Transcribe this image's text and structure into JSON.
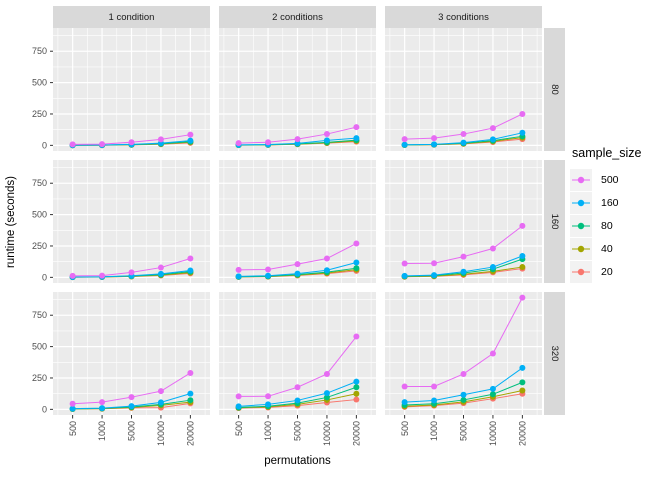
{
  "figure": {
    "y_axis_title": "runtime (seconds)",
    "x_axis_title": "permutations",
    "panel_background": "#EBEBEB",
    "strip_background": "#D9D9D9",
    "grid_color": "#FFFFFF",
    "tick_text_color": "#4D4D4D",
    "strip_text_color": "#1A1A1A",
    "tick_mark_color": "#333333"
  },
  "legend": {
    "title": "sample_size",
    "key_background": "#F2F2F2",
    "items": [
      {
        "label": "500",
        "color": "#E76BF3"
      },
      {
        "label": "160",
        "color": "#00B0F6"
      },
      {
        "label": "80",
        "color": "#00BF7D"
      },
      {
        "label": "40",
        "color": "#A3A500"
      },
      {
        "label": "20",
        "color": "#F8766D"
      }
    ]
  },
  "chart_data": {
    "type": "line",
    "title": "",
    "xlabel": "permutations",
    "ylabel": "runtime (seconds)",
    "x": [
      500,
      1000,
      5000,
      10000,
      20000
    ],
    "x_tick_labels": [
      "500",
      "1000",
      "5000",
      "10000",
      "20000"
    ],
    "y_ticks": [
      0,
      250,
      500,
      750
    ],
    "y_tick_labels": [
      "0",
      "250",
      "500",
      "750"
    ],
    "y_minor_ticks": [
      125,
      375,
      625,
      875
    ],
    "ylim": [
      -45,
      935
    ],
    "grid": true,
    "legend_position": "right",
    "facets": {
      "columns": [
        "1 condition",
        "2 conditions",
        "3 conditions"
      ],
      "rows": [
        "80",
        "160",
        "320"
      ]
    },
    "series_colors": {
      "500": "#E76BF3",
      "160": "#00B0F6",
      "80": "#00BF7D",
      "40": "#A3A500",
      "20": "#F8766D"
    },
    "panels": [
      {
        "col": "1 condition",
        "row": "80",
        "series": [
          {
            "name": "500",
            "values": [
              8,
              10,
              25,
              48,
              85
            ]
          },
          {
            "name": "160",
            "values": [
              2,
              3,
              8,
              18,
              38
            ]
          },
          {
            "name": "80",
            "values": [
              1,
              2,
              6,
              13,
              30
            ]
          },
          {
            "name": "40",
            "values": [
              1,
              2,
              5,
              11,
              25
            ]
          },
          {
            "name": "20",
            "values": [
              1,
              1,
              4,
              9,
              20
            ]
          }
        ]
      },
      {
        "col": "2 conditions",
        "row": "80",
        "series": [
          {
            "name": "500",
            "values": [
              18,
              25,
              50,
              90,
              145
            ]
          },
          {
            "name": "160",
            "values": [
              4,
              7,
              16,
              40,
              58
            ]
          },
          {
            "name": "80",
            "values": [
              3,
              5,
              12,
              24,
              42
            ]
          },
          {
            "name": "40",
            "values": [
              2,
              4,
              10,
              20,
              36
            ]
          },
          {
            "name": "20",
            "values": [
              2,
              4,
              9,
              18,
              30
            ]
          }
        ]
      },
      {
        "col": "3 conditions",
        "row": "80",
        "series": [
          {
            "name": "500",
            "values": [
              50,
              58,
              90,
              137,
              250
            ]
          },
          {
            "name": "160",
            "values": [
              5,
              8,
              22,
              48,
              100
            ]
          },
          {
            "name": "80",
            "values": [
              4,
              7,
              17,
              38,
              72
            ]
          },
          {
            "name": "40",
            "values": [
              3,
              6,
              14,
              32,
              62
            ]
          },
          {
            "name": "20",
            "values": [
              3,
              5,
              12,
              27,
              50
            ]
          }
        ]
      },
      {
        "col": "1 condition",
        "row": "160",
        "series": [
          {
            "name": "500",
            "values": [
              12,
              14,
              40,
              78,
              150
            ]
          },
          {
            "name": "160",
            "values": [
              3,
              5,
              13,
              28,
              55
            ]
          },
          {
            "name": "80",
            "values": [
              2,
              4,
              10,
              22,
              46
            ]
          },
          {
            "name": "40",
            "values": [
              2,
              3,
              8,
              18,
              38
            ]
          },
          {
            "name": "20",
            "values": [
              2,
              3,
              7,
              15,
              32
            ]
          }
        ]
      },
      {
        "col": "2 conditions",
        "row": "160",
        "series": [
          {
            "name": "500",
            "values": [
              60,
              63,
              105,
              150,
              270
            ]
          },
          {
            "name": "160",
            "values": [
              8,
              13,
              30,
              57,
              118
            ]
          },
          {
            "name": "80",
            "values": [
              5,
              9,
              22,
              42,
              73
            ]
          },
          {
            "name": "40",
            "values": [
              4,
              7,
              18,
              35,
              62
            ]
          },
          {
            "name": "20",
            "values": [
              4,
              6,
              15,
              30,
              52
            ]
          }
        ]
      },
      {
        "col": "3 conditions",
        "row": "160",
        "series": [
          {
            "name": "500",
            "values": [
              110,
              112,
              165,
              230,
              410
            ]
          },
          {
            "name": "160",
            "values": [
              12,
              18,
              45,
              82,
              170
            ]
          },
          {
            "name": "80",
            "values": [
              9,
              14,
              35,
              65,
              145
            ]
          },
          {
            "name": "40",
            "values": [
              6,
              10,
              25,
              48,
              82
            ]
          },
          {
            "name": "20",
            "values": [
              5,
              8,
              20,
              40,
              70
            ]
          }
        ]
      },
      {
        "col": "1 condition",
        "row": "320",
        "series": [
          {
            "name": "500",
            "values": [
              45,
              58,
              97,
              145,
              290
            ]
          },
          {
            "name": "160",
            "values": [
              6,
              10,
              26,
              56,
              125
            ]
          },
          {
            "name": "80",
            "values": [
              4,
              8,
              19,
              40,
              73
            ]
          },
          {
            "name": "40",
            "values": [
              3,
              6,
              15,
              32,
              58
            ]
          },
          {
            "name": "20",
            "values": [
              3,
              5,
              12,
              14,
              48
            ]
          }
        ]
      },
      {
        "col": "2 conditions",
        "row": "320",
        "series": [
          {
            "name": "500",
            "values": [
              103,
              104,
              176,
              282,
              580
            ]
          },
          {
            "name": "160",
            "values": [
              24,
              40,
              71,
              129,
              221
            ]
          },
          {
            "name": "80",
            "values": [
              15,
              25,
              50,
              95,
              176
            ]
          },
          {
            "name": "40",
            "values": [
              12,
              20,
              40,
              75,
              124
            ]
          },
          {
            "name": "20",
            "values": [
              10,
              15,
              30,
              55,
              78
            ]
          }
        ]
      },
      {
        "col": "3 conditions",
        "row": "320",
        "series": [
          {
            "name": "500",
            "values": [
              182,
              182,
              282,
              445,
              890
            ]
          },
          {
            "name": "160",
            "values": [
              58,
              71,
              116,
              163,
              330
            ]
          },
          {
            "name": "80",
            "values": [
              35,
              45,
              75,
              120,
              215
            ]
          },
          {
            "name": "40",
            "values": [
              25,
              35,
              60,
              100,
              150
            ]
          },
          {
            "name": "20",
            "values": [
              20,
              30,
              50,
              85,
              124
            ]
          }
        ]
      }
    ]
  }
}
